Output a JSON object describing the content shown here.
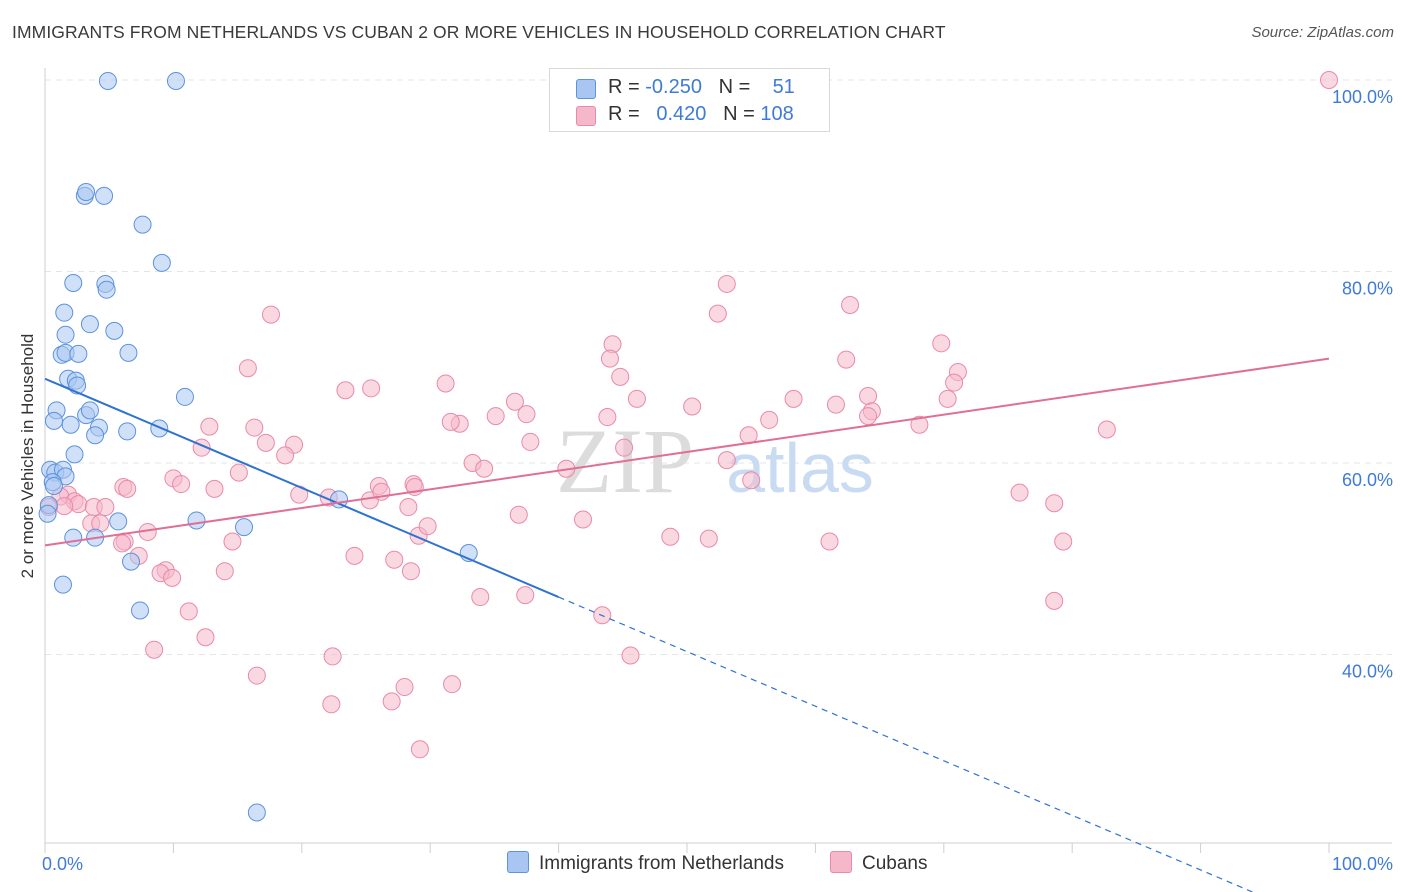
{
  "header": {
    "title": "IMMIGRANTS FROM NETHERLANDS VS CUBAN 2 OR MORE VEHICLES IN HOUSEHOLD CORRELATION CHART",
    "source": "Source: ZipAtlas.com"
  },
  "watermark": {
    "zip": "ZIP",
    "atlas": "atlas"
  },
  "legend": {
    "rows": [
      {
        "r_label": "R =",
        "r_value": "-0.250",
        "n_label": "N =",
        "n_value": "51",
        "color": "#a9c6f2"
      },
      {
        "r_label": "R =",
        "r_value": "0.420",
        "n_label": "N =",
        "n_value": "108",
        "color": "#f5b8cb"
      }
    ]
  },
  "bottom_legend": {
    "series1": "Immigrants from Netherlands",
    "series2": "Cubans"
  },
  "colors": {
    "blue_fill": "#a9c6f2",
    "blue_stroke": "#5b93dc",
    "blue_line": "#2f72d0",
    "pink_fill": "#f5b8cb",
    "pink_stroke": "#e98aa8",
    "pink_line": "#e06f96",
    "axis_label": "#3f7bd6",
    "grid": "#e5e5e5"
  },
  "chart_data": {
    "type": "scatter",
    "title": "IMMIGRANTS FROM NETHERLANDS VS CUBAN 2 OR MORE VEHICLES IN HOUSEHOLD CORRELATION CHART",
    "xlabel": "",
    "ylabel": "2 or more Vehicles in Household",
    "xlim": [
      0,
      100
    ],
    "ylim": [
      20,
      102
    ],
    "x_tick_labels": [
      {
        "value": 0,
        "label": "0.0%"
      },
      {
        "value": 100,
        "label": "100.0%"
      }
    ],
    "y_tick_labels": [
      {
        "value": 40,
        "label": "40.0%"
      },
      {
        "value": 60,
        "label": "60.0%"
      },
      {
        "value": 80,
        "label": "80.0%"
      },
      {
        "value": 100,
        "label": "100.0%"
      }
    ],
    "series": [
      {
        "name": "Immigrants from Netherlands",
        "r": -0.25,
        "n": 51,
        "trend": {
          "x0": 0,
          "y0": 68.8,
          "x1": 40,
          "y1": 46.0,
          "dash_to_x": 100
        },
        "points": [
          [
            4.9,
            99.9
          ],
          [
            10.2,
            99.9
          ],
          [
            3.1,
            87.9
          ],
          [
            3.2,
            88.3
          ],
          [
            4.6,
            87.9
          ],
          [
            7.6,
            84.9
          ],
          [
            9.1,
            80.9
          ],
          [
            2.2,
            78.8
          ],
          [
            4.7,
            78.7
          ],
          [
            4.8,
            78.1
          ],
          [
            1.5,
            75.7
          ],
          [
            3.5,
            74.5
          ],
          [
            5.4,
            73.8
          ],
          [
            1.6,
            73.4
          ],
          [
            1.3,
            71.3
          ],
          [
            1.6,
            71.5
          ],
          [
            2.6,
            71.4
          ],
          [
            6.5,
            71.5
          ],
          [
            1.8,
            68.8
          ],
          [
            2.4,
            68.6
          ],
          [
            2.5,
            68.1
          ],
          [
            10.9,
            66.9
          ],
          [
            0.9,
            65.5
          ],
          [
            3.2,
            65.0
          ],
          [
            3.5,
            65.5
          ],
          [
            0.7,
            64.4
          ],
          [
            2.0,
            64.0
          ],
          [
            4.2,
            63.7
          ],
          [
            3.9,
            62.9
          ],
          [
            6.4,
            63.3
          ],
          [
            8.9,
            63.6
          ],
          [
            2.3,
            60.9
          ],
          [
            0.4,
            59.3
          ],
          [
            0.8,
            59.0
          ],
          [
            1.4,
            59.3
          ],
          [
            1.6,
            58.6
          ],
          [
            0.6,
            58.0
          ],
          [
            0.7,
            57.6
          ],
          [
            0.3,
            55.6
          ],
          [
            0.2,
            54.7
          ],
          [
            5.7,
            53.9
          ],
          [
            2.2,
            52.2
          ],
          [
            3.9,
            52.2
          ],
          [
            11.8,
            54.0
          ],
          [
            15.5,
            53.3
          ],
          [
            22.9,
            56.2
          ],
          [
            33.0,
            50.6
          ],
          [
            6.7,
            49.7
          ],
          [
            1.4,
            47.3
          ],
          [
            7.4,
            44.6
          ],
          [
            16.5,
            23.5
          ]
        ]
      },
      {
        "name": "Cubans",
        "r": 0.42,
        "n": 108,
        "trend": {
          "x0": 0,
          "y0": 51.4,
          "x1": 100,
          "y1": 70.9
        },
        "points": [
          [
            100,
            100
          ],
          [
            53.1,
            78.7
          ],
          [
            52.4,
            75.6
          ],
          [
            17.6,
            75.5
          ],
          [
            62.7,
            76.5
          ],
          [
            69.8,
            72.5
          ],
          [
            44.2,
            72.4
          ],
          [
            44.0,
            70.9
          ],
          [
            62.4,
            70.8
          ],
          [
            15.8,
            69.9
          ],
          [
            71.1,
            69.5
          ],
          [
            44.8,
            69.0
          ],
          [
            31.2,
            68.3
          ],
          [
            70.8,
            68.4
          ],
          [
            23.4,
            67.6
          ],
          [
            25.4,
            67.8
          ],
          [
            46.1,
            66.7
          ],
          [
            58.3,
            66.7
          ],
          [
            36.6,
            66.4
          ],
          [
            64.1,
            67.0
          ],
          [
            61.6,
            66.1
          ],
          [
            70.3,
            66.7
          ],
          [
            50.4,
            65.9
          ],
          [
            64.4,
            65.4
          ],
          [
            35.1,
            64.9
          ],
          [
            37.5,
            65.1
          ],
          [
            43.8,
            64.8
          ],
          [
            64.1,
            64.9
          ],
          [
            56.4,
            64.5
          ],
          [
            32.3,
            64.1
          ],
          [
            31.6,
            64.3
          ],
          [
            12.8,
            63.8
          ],
          [
            16.3,
            63.7
          ],
          [
            68.1,
            64.0
          ],
          [
            82.7,
            63.5
          ],
          [
            54.8,
            62.9
          ],
          [
            37.8,
            62.2
          ],
          [
            17.2,
            62.1
          ],
          [
            19.4,
            61.9
          ],
          [
            45.1,
            61.6
          ],
          [
            12.2,
            61.6
          ],
          [
            18.7,
            60.8
          ],
          [
            33.3,
            60.0
          ],
          [
            53.1,
            60.3
          ],
          [
            34.2,
            59.4
          ],
          [
            40.6,
            59.4
          ],
          [
            15.1,
            59.0
          ],
          [
            10.0,
            58.4
          ],
          [
            55.0,
            58.2
          ],
          [
            10.6,
            57.8
          ],
          [
            26.0,
            57.6
          ],
          [
            28.7,
            57.8
          ],
          [
            28.8,
            57.5
          ],
          [
            6.1,
            57.5
          ],
          [
            6.4,
            57.3
          ],
          [
            13.2,
            57.3
          ],
          [
            19.8,
            56.7
          ],
          [
            25.3,
            56.1
          ],
          [
            1.8,
            56.7
          ],
          [
            1.2,
            56.5
          ],
          [
            2.3,
            56.0
          ],
          [
            2.6,
            55.7
          ],
          [
            3.8,
            55.4
          ],
          [
            4.7,
            55.4
          ],
          [
            1.5,
            55.5
          ],
          [
            0.3,
            55.4
          ],
          [
            22.1,
            56.4
          ],
          [
            26.2,
            57.0
          ],
          [
            75.9,
            56.9
          ],
          [
            78.6,
            55.8
          ],
          [
            36.9,
            54.6
          ],
          [
            28.3,
            55.4
          ],
          [
            41.9,
            54.1
          ],
          [
            3.6,
            53.7
          ],
          [
            4.3,
            53.7
          ],
          [
            8.0,
            52.8
          ],
          [
            6.2,
            51.8
          ],
          [
            6.0,
            51.6
          ],
          [
            14.6,
            51.8
          ],
          [
            29.1,
            52.4
          ],
          [
            29.8,
            53.4
          ],
          [
            48.7,
            52.3
          ],
          [
            51.7,
            52.1
          ],
          [
            61.1,
            51.8
          ],
          [
            79.3,
            51.8
          ],
          [
            7.3,
            50.3
          ],
          [
            24.1,
            50.3
          ],
          [
            27.2,
            49.9
          ],
          [
            9.4,
            48.8
          ],
          [
            9.0,
            48.5
          ],
          [
            9.9,
            48.0
          ],
          [
            14.0,
            48.7
          ],
          [
            28.5,
            48.7
          ],
          [
            33.9,
            46.0
          ],
          [
            37.4,
            46.2
          ],
          [
            78.6,
            45.6
          ],
          [
            11.2,
            44.5
          ],
          [
            43.4,
            44.1
          ],
          [
            12.5,
            41.8
          ],
          [
            8.5,
            40.5
          ],
          [
            22.4,
            39.8
          ],
          [
            45.6,
            39.9
          ],
          [
            16.5,
            37.8
          ],
          [
            28.0,
            36.6
          ],
          [
            22.3,
            34.8
          ],
          [
            27.0,
            35.1
          ],
          [
            31.7,
            36.9
          ],
          [
            29.2,
            30.1
          ]
        ]
      }
    ]
  }
}
